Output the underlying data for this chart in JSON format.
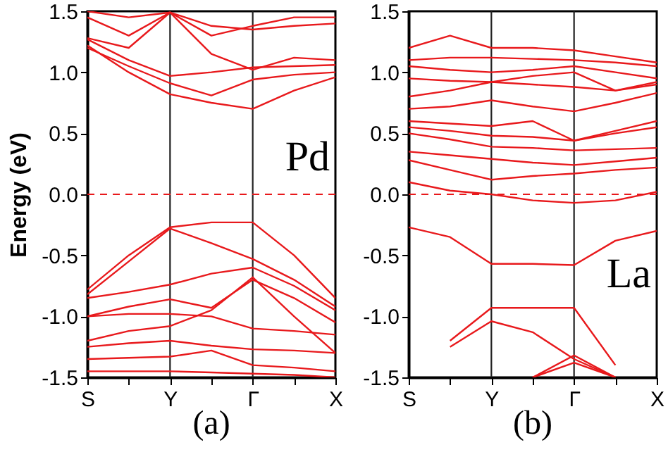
{
  "chart_data": [
    {
      "type": "line",
      "ylabel": "Energy (eV)",
      "annotations": [
        "Pd",
        "(a)"
      ],
      "categories": [
        "S",
        null,
        "Y",
        null,
        "Γ",
        null,
        "X"
      ],
      "ylim": [
        -1.5,
        1.5
      ],
      "yticks": [
        {
          "value": -1.5,
          "label": "-1.5"
        },
        {
          "value": -1,
          "label": "-1.0"
        },
        {
          "value": -0.5,
          "label": "-0.5"
        },
        {
          "value": 0,
          "label": "0.0"
        },
        {
          "value": 0.5,
          "label": "0.5"
        },
        {
          "value": 1,
          "label": "1.0"
        },
        {
          "value": 1.5,
          "label": "1.5"
        }
      ],
      "ref_lines": [
        {
          "axis": "x",
          "value": "Y",
          "color": "#222222"
        },
        {
          "axis": "x",
          "value": "Γ",
          "color": "#222222"
        },
        {
          "axis": "y",
          "value": 0,
          "color": "#e8191c",
          "line_style": "dashed"
        }
      ],
      "grid": false,
      "legend": false,
      "marker": "none",
      "line_style": "solid",
      "series": [
        {
          "color": "#e8191c",
          "values": [
            1.22,
            1.0,
            0.82,
            0.75,
            0.7,
            0.85,
            0.96
          ]
        },
        {
          "color": "#e8191c",
          "values": [
            1.2,
            1.05,
            0.91,
            0.81,
            0.94,
            0.98,
            1.0
          ]
        },
        {
          "color": "#e8191c",
          "values": [
            1.27,
            1.1,
            0.97,
            1.0,
            1.04,
            1.05,
            1.06
          ]
        },
        {
          "color": "#e8191c",
          "values": [
            1.45,
            1.3,
            1.49,
            1.3,
            1.38,
            1.45,
            1.45
          ]
        },
        {
          "color": "#e8191c",
          "values": [
            1.28,
            1.2,
            1.49,
            1.15,
            1.02,
            1.12,
            1.1
          ]
        },
        {
          "color": "#e8191c",
          "values": [
            1.5,
            1.45,
            1.49,
            1.38,
            1.35,
            1.38,
            1.4
          ]
        },
        {
          "color": "#e8191c",
          "values": [
            -0.78,
            -0.5,
            -0.27,
            -0.23,
            -0.23,
            -0.5,
            -0.85
          ]
        },
        {
          "color": "#e8191c",
          "values": [
            -0.82,
            -0.55,
            -0.28,
            -0.4,
            -0.53,
            -0.7,
            -0.92
          ]
        },
        {
          "color": "#e8191c",
          "values": [
            -0.85,
            -0.8,
            -0.74,
            -0.65,
            -0.6,
            -0.75,
            -0.95
          ]
        },
        {
          "color": "#e8191c",
          "values": [
            -1.0,
            -0.92,
            -0.86,
            -0.93,
            -0.7,
            -0.85,
            -1.05
          ]
        },
        {
          "color": "#e8191c",
          "values": [
            -1.0,
            -0.98,
            -0.98,
            -1.0,
            -1.1,
            -1.12,
            -1.15
          ]
        },
        {
          "color": "#e8191c",
          "values": [
            -1.2,
            -1.12,
            -1.08,
            -0.95,
            -0.68,
            -1.0,
            -1.3
          ]
        },
        {
          "color": "#e8191c",
          "values": [
            -1.25,
            -1.22,
            -1.2,
            -1.24,
            -1.27,
            -1.28,
            -1.3
          ]
        },
        {
          "color": "#e8191c",
          "values": [
            -1.35,
            -1.34,
            -1.33,
            -1.28,
            -1.4,
            -1.42,
            -1.45
          ]
        },
        {
          "color": "#e8191c",
          "values": [
            -1.45,
            -1.45,
            -1.45,
            -1.46,
            -1.47,
            -1.48,
            -1.5
          ]
        }
      ]
    },
    {
      "type": "line",
      "annotations": [
        "La",
        "(b)"
      ],
      "categories": [
        "S",
        null,
        "Y",
        null,
        "Γ",
        null,
        "X"
      ],
      "ylim": [
        -1.5,
        1.5
      ],
      "yticks": [
        {
          "value": -1.5,
          "label": "-1.5"
        },
        {
          "value": -1,
          "label": "-1.0"
        },
        {
          "value": -0.5,
          "label": "-0.5"
        },
        {
          "value": 0,
          "label": "0.0"
        },
        {
          "value": 0.5,
          "label": "0.5"
        },
        {
          "value": 1,
          "label": "1.0"
        },
        {
          "value": 1.5,
          "label": "1.5"
        }
      ],
      "ref_lines": [
        {
          "axis": "x",
          "value": "Y",
          "color": "#222222"
        },
        {
          "axis": "x",
          "value": "Γ",
          "color": "#222222"
        },
        {
          "axis": "y",
          "value": 0,
          "color": "#e8191c",
          "line_style": "dashed"
        }
      ],
      "grid": false,
      "legend": false,
      "marker": "none",
      "line_style": "solid",
      "series": [
        {
          "color": "#e8191c",
          "values": [
            0.1,
            0.03,
            0.0,
            -0.05,
            -0.07,
            -0.05,
            0.02
          ]
        },
        {
          "color": "#e8191c",
          "values": [
            0.28,
            0.2,
            0.12,
            0.15,
            0.17,
            0.2,
            0.22
          ]
        },
        {
          "color": "#e8191c",
          "values": [
            0.35,
            0.32,
            0.29,
            0.26,
            0.24,
            0.27,
            0.3
          ]
        },
        {
          "color": "#e8191c",
          "values": [
            0.5,
            0.45,
            0.39,
            0.38,
            0.36,
            0.37,
            0.38
          ]
        },
        {
          "color": "#e8191c",
          "values": [
            0.55,
            0.52,
            0.48,
            0.47,
            0.44,
            0.5,
            0.55
          ]
        },
        {
          "color": "#e8191c",
          "values": [
            0.6,
            0.58,
            0.56,
            0.6,
            0.44,
            0.52,
            0.6
          ]
        },
        {
          "color": "#e8191c",
          "values": [
            0.7,
            0.72,
            0.77,
            0.72,
            0.68,
            0.75,
            0.83
          ]
        },
        {
          "color": "#e8191c",
          "values": [
            0.8,
            0.85,
            0.92,
            0.9,
            0.88,
            0.85,
            0.92
          ]
        },
        {
          "color": "#e8191c",
          "values": [
            0.95,
            0.93,
            0.92,
            0.97,
            1.0,
            0.85,
            0.9
          ]
        },
        {
          "color": "#e8191c",
          "values": [
            1.05,
            1.02,
            1.0,
            1.02,
            1.05,
            1.0,
            0.95
          ]
        },
        {
          "color": "#e8191c",
          "values": [
            1.1,
            1.12,
            1.12,
            1.11,
            1.1,
            1.08,
            1.05
          ]
        },
        {
          "color": "#e8191c",
          "values": [
            1.2,
            1.3,
            1.2,
            1.2,
            1.18,
            1.13,
            1.08
          ]
        },
        {
          "color": "#e8191c",
          "values": [
            -0.27,
            -0.35,
            -0.57,
            -0.57,
            -0.58,
            -0.38,
            -0.3
          ]
        },
        {
          "color": "#e8191c",
          "values": [
            null,
            -1.2,
            -0.93,
            -0.93,
            -0.93,
            -1.4,
            null
          ]
        },
        {
          "color": "#e8191c",
          "values": [
            null,
            -1.25,
            -1.04,
            -1.13,
            -1.35,
            -1.5,
            null
          ]
        },
        {
          "color": "#e8191c",
          "values": [
            null,
            null,
            null,
            -1.5,
            -1.32,
            -1.5,
            null
          ]
        },
        {
          "color": "#e8191c",
          "values": [
            null,
            null,
            null,
            -1.5,
            -1.38,
            -1.5,
            null
          ]
        }
      ]
    }
  ]
}
